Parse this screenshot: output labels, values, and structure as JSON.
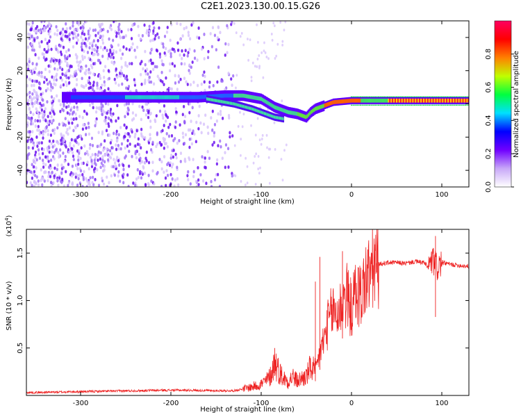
{
  "title": "C2E1.2023.130.00.15.G26",
  "chart_data": [
    {
      "type": "heatmap",
      "xlabel": "Height of straight line (km)",
      "ylabel": "Frequency (Hz)",
      "xlim": [
        -360,
        130
      ],
      "ylim": [
        -50,
        50
      ],
      "xticks": [
        -300,
        -200,
        -100,
        0,
        100
      ],
      "yticks": [
        -40,
        -20,
        0,
        20,
        40
      ],
      "colorbar": {
        "label": "Normalized spectral amplitude",
        "range": [
          0,
          1
        ],
        "ticks": [
          "0.0",
          "0.2",
          "0.4",
          "0.6",
          "0.8"
        ],
        "tick_values": [
          0,
          0.2,
          0.4,
          0.6,
          0.8
        ],
        "colors": [
          "#ffffff",
          "#c8a8f8",
          "#7000ff",
          "#0000ff",
          "#00e0ff",
          "#00ff40",
          "#c0ff00",
          "#ff8000",
          "#ff0000",
          "#ff0060"
        ]
      },
      "signal_track": {
        "x": [
          -310,
          -250,
          -200,
          -170,
          -140,
          -120,
          -100,
          -85,
          -70,
          -60,
          -50,
          -45,
          -40,
          -30,
          -20,
          0,
          20,
          50,
          80,
          100,
          130
        ],
        "y": [
          4,
          4,
          4,
          4,
          5,
          5,
          3,
          -2,
          -5,
          -6,
          -8,
          -5,
          -3,
          -1,
          1,
          2,
          2,
          2,
          2,
          2,
          2
        ]
      },
      "secondary_track": {
        "x": [
          -160,
          -130,
          -110,
          -95,
          -85,
          -75
        ],
        "y": [
          3,
          0,
          -3,
          -6,
          -8,
          -9
        ]
      }
    },
    {
      "type": "line",
      "xlabel": "Height of straight line (km)",
      "ylabel": "SNR (10 * v/v)",
      "yscale_label": "(x10",
      "yscale_exp": "4",
      "xlim": [
        -360,
        130
      ],
      "ylim": [
        0,
        17500
      ],
      "xticks": [
        -300,
        -200,
        -100,
        0,
        100
      ],
      "yticks": [
        5000,
        10000,
        15000
      ],
      "ytick_labels": [
        "0.5",
        "1.0",
        "1.5"
      ],
      "color": "#ee2222",
      "series": [
        {
          "x": [
            -360,
            -330,
            -300,
            -270,
            -240,
            -210,
            -180,
            -150,
            -130,
            -120,
            -110,
            -100,
            -95,
            -90,
            -85,
            -80,
            -75,
            -70,
            -65,
            -60,
            -55,
            -50,
            -45,
            -40,
            -35,
            -30,
            -25,
            -20,
            -15,
            -10,
            -5,
            0,
            5,
            10,
            15,
            20,
            25,
            30,
            40,
            50,
            60,
            70,
            80,
            85,
            90,
            95,
            100,
            110,
            120,
            130
          ],
          "y": [
            300,
            350,
            400,
            450,
            500,
            550,
            550,
            500,
            500,
            700,
            900,
            1200,
            1500,
            2000,
            3500,
            2500,
            1800,
            1500,
            2000,
            1500,
            1800,
            2000,
            3000,
            2500,
            4500,
            6000,
            8000,
            9000,
            8500,
            10000,
            10500,
            9000,
            11000,
            10500,
            12000,
            12800,
            13500,
            13800,
            14000,
            14000,
            13900,
            14100,
            14000,
            13500,
            14200,
            13500,
            14000,
            13800,
            13700,
            13600
          ]
        }
      ]
    }
  ]
}
